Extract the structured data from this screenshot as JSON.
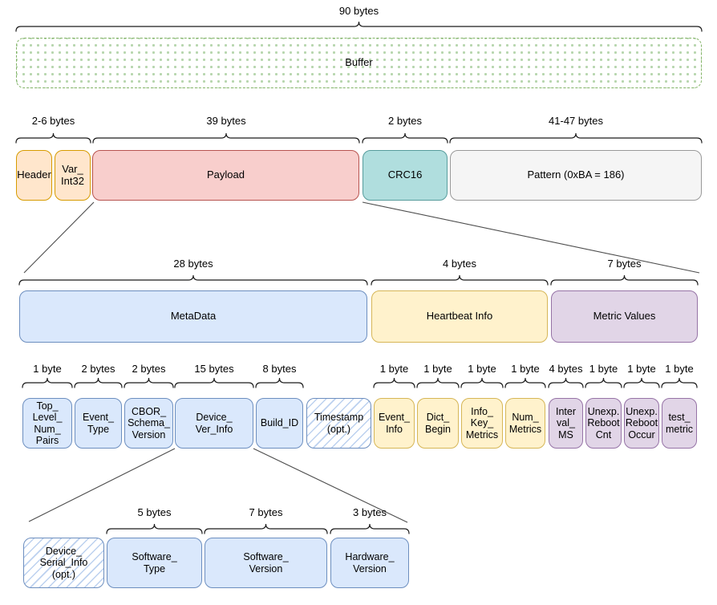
{
  "diagram": {
    "kind": "packet-byte-structure",
    "palette": {
      "background": "#ffffff",
      "text": "#000000",
      "brace": "#1a1a1a",
      "connector": "#4d4d4d",
      "styles": {
        "green-dotted": {
          "fill": "#ffffff",
          "border": "#82b366",
          "dot": "#b7d6ae"
        },
        "orange": {
          "fill": "#ffe6cc",
          "border": "#d79b00"
        },
        "red": {
          "fill": "#f8cecc",
          "border": "#b85450"
        },
        "teal": {
          "fill": "#b0dede",
          "border": "#569c9c"
        },
        "gray": {
          "fill": "#f5f5f5",
          "border": "#999999"
        },
        "blue": {
          "fill": "#dae8fc",
          "border": "#6c8ebf"
        },
        "yellow": {
          "fill": "#fff2cc",
          "border": "#d6b656"
        },
        "purple": {
          "fill": "#e1d5e7",
          "border": "#9673a6"
        },
        "blue-hatched": {
          "fill": "#ffffff",
          "border": "#6c8ebf",
          "stripe": "#bcd1ef"
        }
      }
    },
    "rows": [
      {
        "id": "buffer-row",
        "braces": [
          "90 bytes"
        ],
        "boxes": [
          {
            "label": "Buffer",
            "style": "green-dotted"
          }
        ]
      },
      {
        "id": "frame-row",
        "braces": [
          "2-6 bytes",
          "39 bytes",
          "2 bytes",
          "41-47 bytes"
        ],
        "boxes": [
          {
            "label": "Header",
            "style": "orange"
          },
          {
            "label": "Var_\nInt32",
            "style": "orange"
          },
          {
            "label": "Payload",
            "style": "red"
          },
          {
            "label": "CRC16",
            "style": "teal"
          },
          {
            "label": "Pattern (0xBA = 186)",
            "style": "gray"
          }
        ]
      },
      {
        "id": "payload-sections-row",
        "braces": [
          "28 bytes",
          "4 bytes",
          "7 bytes"
        ],
        "boxes": [
          {
            "label": "MetaData",
            "style": "blue"
          },
          {
            "label": "Heartbeat Info",
            "style": "yellow"
          },
          {
            "label": "Metric Values",
            "style": "purple"
          }
        ]
      },
      {
        "id": "fields-row",
        "braces": [
          "1 byte",
          "2 bytes",
          "2 bytes",
          "15 bytes",
          "8 bytes",
          "1 byte",
          "1 byte",
          "1 byte",
          "1 byte",
          "4 bytes",
          "1 byte",
          "1 byte",
          "1 byte"
        ],
        "boxes": [
          {
            "label": "Top_\nLevel_\nNum_\nPairs",
            "style": "blue"
          },
          {
            "label": "Event_\nType",
            "style": "blue"
          },
          {
            "label": "CBOR_\nSchema_\nVersion",
            "style": "blue"
          },
          {
            "label": "Device_\nVer_Info",
            "style": "blue"
          },
          {
            "label": "Build_ID",
            "style": "blue"
          },
          {
            "label": "Timestamp\n(opt.)",
            "style": "blue-hatched"
          },
          {
            "label": "Event_\nInfo",
            "style": "yellow"
          },
          {
            "label": "Dict_\nBegin",
            "style": "yellow"
          },
          {
            "label": "Info_\nKey_\nMetrics",
            "style": "yellow"
          },
          {
            "label": "Num_\nMetrics",
            "style": "yellow"
          },
          {
            "label": "Inter\nval_\nMS",
            "style": "purple"
          },
          {
            "label": "Unexp.\nReboot\nCnt",
            "style": "purple"
          },
          {
            "label": "Unexp.\nReboot\nOccur",
            "style": "purple"
          },
          {
            "label": "test_\nmetric",
            "style": "purple"
          }
        ]
      },
      {
        "id": "device-ver-info-row",
        "braces": [
          "5 bytes",
          "7 bytes",
          "3 bytes"
        ],
        "boxes": [
          {
            "label": "Device_\nSerial_Info\n(opt.)",
            "style": "blue-hatched"
          },
          {
            "label": "Software_\nType",
            "style": "blue"
          },
          {
            "label": "Software_\nVersion",
            "style": "blue"
          },
          {
            "label": "Hardware_\nVersion",
            "style": "blue"
          }
        ]
      }
    ]
  }
}
